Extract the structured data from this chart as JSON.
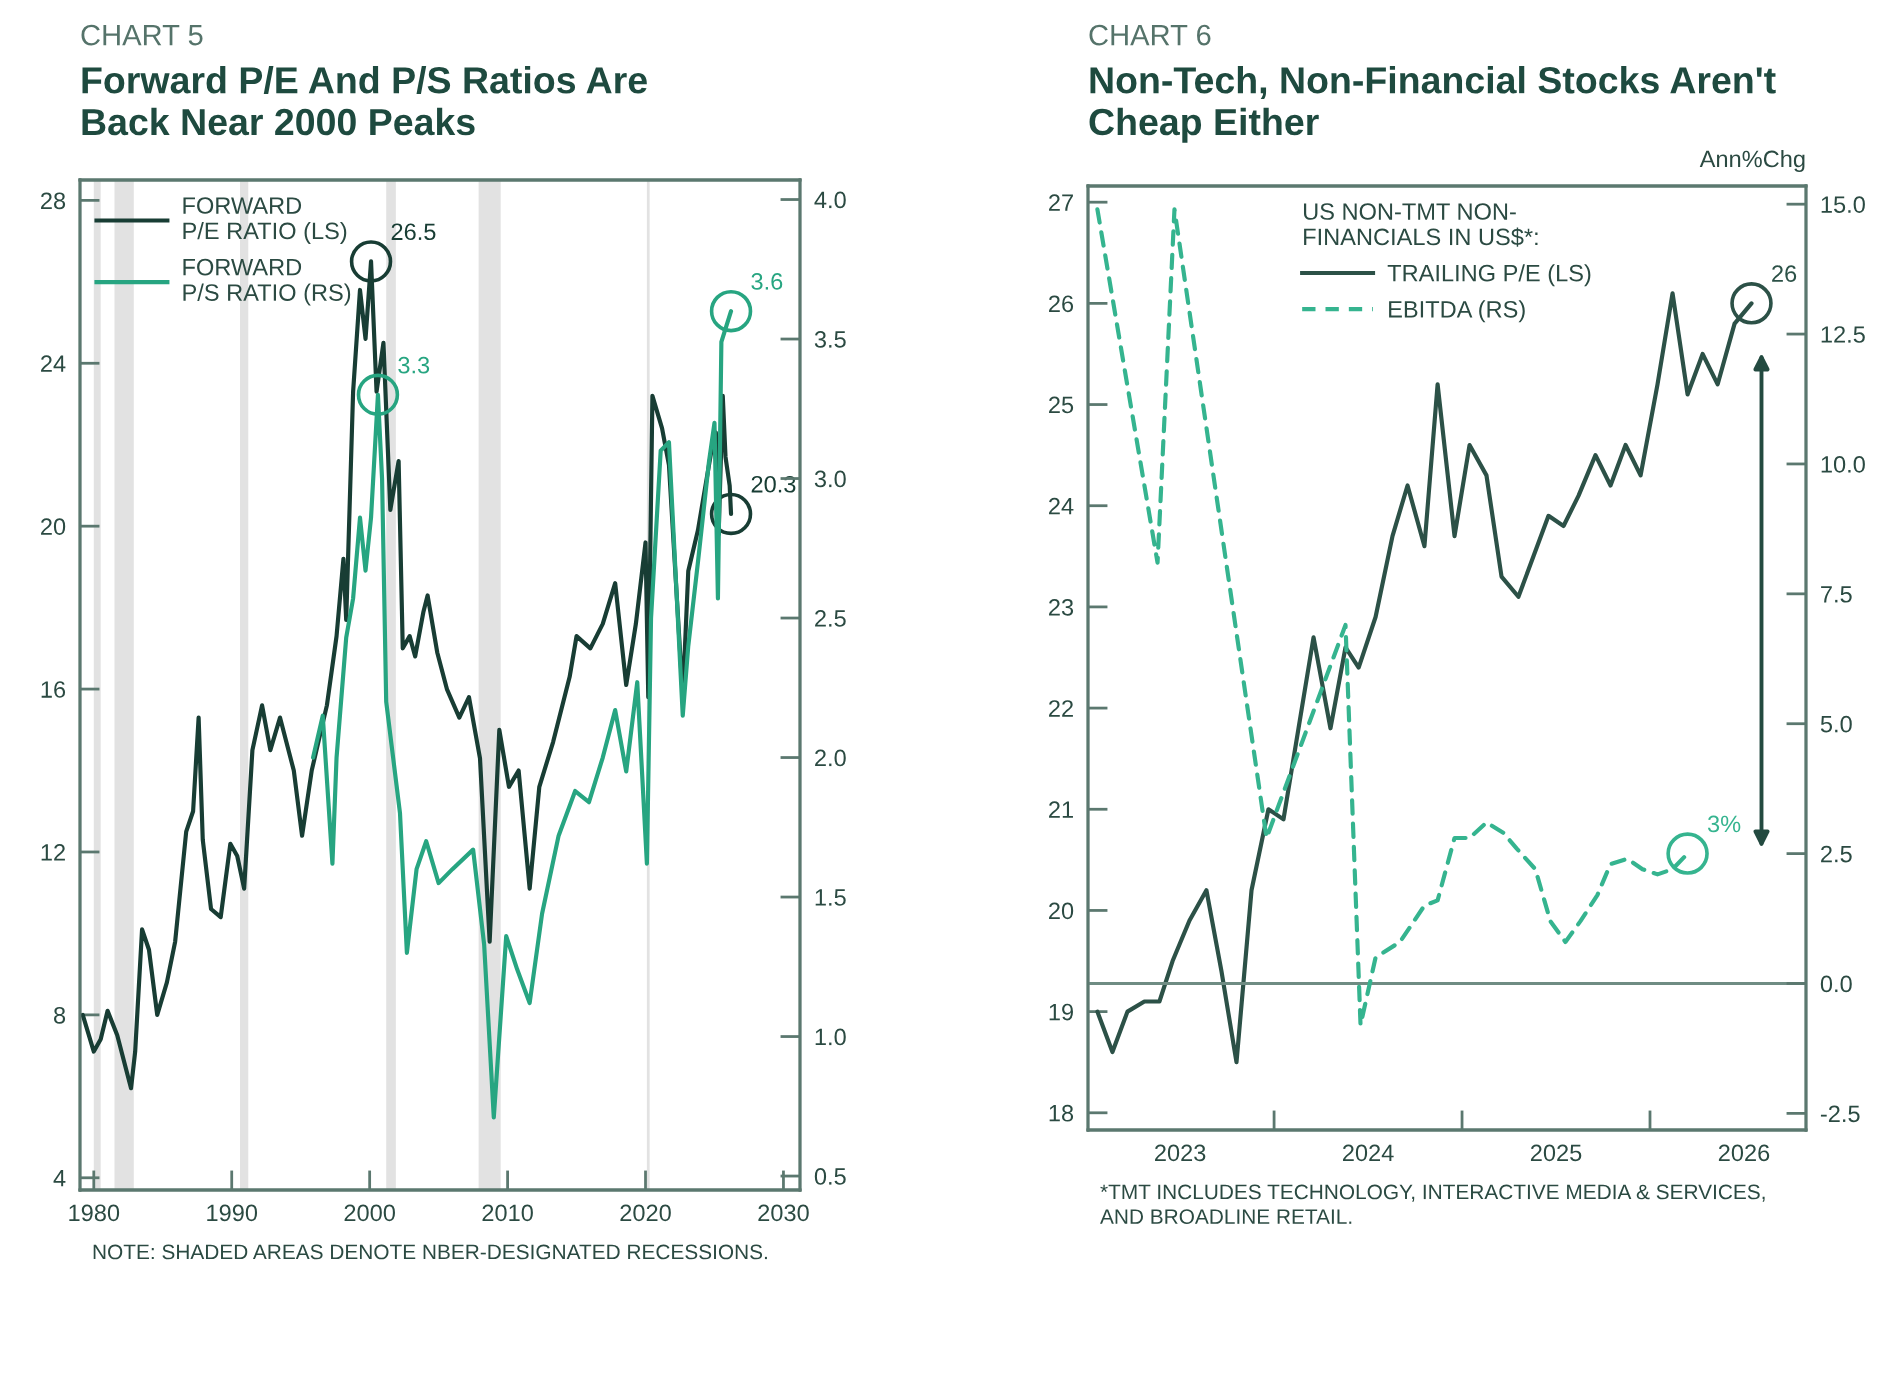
{
  "chart_data": [
    {
      "type": "line",
      "subtitle": "CHART 5",
      "title": "Forward P/E And P/S Ratios Are\nBack Near 2000 Peaks",
      "legend": "top left",
      "xlim": [
        1979,
        2031.2
      ],
      "xticks": [
        1980,
        1990,
        2000,
        2010,
        2020,
        2030
      ],
      "ylim": [
        3.7,
        28.5
      ],
      "yticks": [
        4,
        8,
        12,
        16,
        20,
        24,
        28
      ],
      "y2lim": [
        0.45,
        4.07
      ],
      "y2ticks": [
        0.5,
        {
          "value": 1,
          "label": "1.0"
        },
        1.5,
        {
          "value": 2,
          "label": "2.0"
        },
        2.5,
        {
          "value": 3,
          "label": "3.0"
        },
        3.5,
        {
          "value": 4,
          "label": "4.0"
        }
      ],
      "bands": [
        {
          "axis": "x",
          "from": 1980.0,
          "to": 1980.5,
          "color": "#e2e2e2"
        },
        {
          "axis": "x",
          "from": 1981.5,
          "to": 1982.9,
          "color": "#e2e2e2"
        },
        {
          "axis": "x",
          "from": 1990.6,
          "to": 1991.2,
          "color": "#e2e2e2"
        },
        {
          "axis": "x",
          "from": 2001.2,
          "to": 2001.9,
          "color": "#e2e2e2"
        },
        {
          "axis": "x",
          "from": 2007.9,
          "to": 2009.5,
          "color": "#e2e2e2"
        },
        {
          "axis": "x",
          "from": 2020.1,
          "to": 2020.3,
          "color": "#e2e2e2"
        }
      ],
      "annotations": [
        "NOTE: SHADED AREAS DENOTE NBER-DESIGNATED RECESSIONS."
      ],
      "series": [
        {
          "name": "FORWARD\nP/E RATIO (LS)",
          "color": "#183d34",
          "line_style": "solid",
          "x": [
            1979.2,
            1980.0,
            1980.5,
            1981.0,
            1981.7,
            1982.7,
            1983.0,
            1983.5,
            1984.0,
            1984.6,
            1985.3,
            1985.9,
            1986.7,
            1987.2,
            1987.6,
            1987.9,
            1988.5,
            1989.2,
            1989.9,
            1990.4,
            1990.9,
            1991.5,
            1992.2,
            1992.8,
            1993.5,
            1994.5,
            1995.1,
            1995.8,
            1996.9,
            1997.6,
            1998.1,
            1998.3,
            1998.8,
            1999.3,
            1999.7,
            2000.1,
            2000.5,
            2001.0,
            2001.5,
            2002.1,
            2002.4,
            2002.9,
            2003.3,
            2003.9,
            2004.2,
            2004.9,
            2005.6,
            2006.5,
            2007.2,
            2008.0,
            2008.7,
            2009.4,
            2010.1,
            2010.8,
            2011.6,
            2012.3,
            2013.3,
            2014.5,
            2015.0,
            2016.0,
            2016.9,
            2017.8,
            2018.6,
            2019.3,
            2020.0,
            2020.2,
            2020.5,
            2021.2,
            2021.7,
            2022.7,
            2023.1,
            2023.8,
            2024.8,
            2025.1,
            2025.3,
            2025.6,
            2025.8,
            2026.1,
            2026.2
          ],
          "values": [
            8.0,
            7.1,
            7.4,
            8.1,
            7.5,
            6.2,
            7.1,
            10.1,
            9.6,
            8.0,
            8.8,
            9.8,
            12.5,
            13.0,
            15.3,
            12.3,
            10.6,
            10.4,
            12.2,
            11.9,
            11.1,
            14.5,
            15.6,
            14.5,
            15.3,
            14.0,
            12.4,
            14.0,
            15.6,
            17.3,
            19.2,
            17.7,
            23.3,
            25.8,
            24.6,
            26.5,
            23.3,
            24.5,
            20.4,
            21.6,
            17.0,
            17.3,
            16.8,
            17.9,
            18.3,
            16.9,
            16.0,
            15.3,
            15.8,
            14.3,
            9.8,
            15.0,
            13.6,
            14.0,
            11.1,
            13.6,
            14.7,
            16.3,
            17.3,
            17.0,
            17.6,
            18.6,
            16.1,
            17.6,
            19.6,
            15.8,
            23.2,
            22.4,
            21.5,
            15.8,
            18.9,
            19.9,
            21.9,
            22.3,
            19.8,
            23.2,
            21.7,
            21.0,
            20.3
          ],
          "value_labels": [
            null,
            null,
            null,
            null,
            null,
            null,
            null,
            null,
            null,
            null,
            null,
            null,
            null,
            null,
            null,
            null,
            null,
            null,
            null,
            null,
            null,
            null,
            null,
            null,
            null,
            null,
            null,
            null,
            null,
            null,
            null,
            null,
            null,
            null,
            null,
            "26.5",
            null,
            null,
            null,
            null,
            null,
            null,
            null,
            null,
            null,
            null,
            null,
            null,
            null,
            null,
            null,
            null,
            null,
            null,
            null,
            null,
            null,
            null,
            null,
            null,
            null,
            null,
            null,
            null,
            null,
            null,
            null,
            null,
            null,
            null,
            null,
            null,
            null,
            null,
            null,
            null,
            null,
            null,
            "20.3"
          ]
        },
        {
          "name": "FORWARD\nP/S RATIO (RS)",
          "color": "#27a581",
          "line_style": "solid",
          "axis": "y2",
          "x": [
            1995.9,
            1996.6,
            1997.3,
            1997.6,
            1998.3,
            1998.8,
            1999.3,
            1999.7,
            2000.1,
            2000.6,
            2000.9,
            2001.2,
            2001.7,
            2002.2,
            2002.7,
            2003.4,
            2004.1,
            2005.0,
            2006.0,
            2007.5,
            2008.3,
            2009.0,
            2009.9,
            2010.7,
            2011.6,
            2012.5,
            2013.7,
            2014.9,
            2015.9,
            2016.9,
            2017.8,
            2018.6,
            2019.4,
            2020.1,
            2020.4,
            2021.1,
            2021.7,
            2022.7,
            2023.1,
            2023.8,
            2024.6,
            2025.0,
            2025.25,
            2025.5,
            2026.2
          ],
          "values": [
            2.0,
            2.15,
            1.62,
            2.0,
            2.43,
            2.57,
            2.86,
            2.67,
            2.86,
            3.3,
            3.0,
            2.2,
            2.0,
            1.8,
            1.3,
            1.6,
            1.7,
            1.55,
            1.6,
            1.67,
            1.33,
            0.71,
            1.36,
            1.24,
            1.12,
            1.44,
            1.72,
            1.88,
            1.84,
            2.0,
            2.17,
            1.95,
            2.27,
            1.62,
            2.5,
            3.1,
            3.13,
            2.15,
            2.4,
            2.7,
            3.06,
            3.2,
            2.57,
            3.49,
            3.6
          ],
          "value_labels": [
            null,
            null,
            null,
            null,
            null,
            null,
            null,
            null,
            null,
            "3.3",
            null,
            null,
            null,
            null,
            null,
            null,
            null,
            null,
            null,
            null,
            null,
            null,
            null,
            null,
            null,
            null,
            null,
            null,
            null,
            null,
            null,
            null,
            null,
            null,
            null,
            null,
            null,
            null,
            null,
            null,
            null,
            null,
            null,
            null,
            "3.6"
          ]
        }
      ]
    },
    {
      "type": "line",
      "subtitle": "CHART 6",
      "title": "Non-Tech, Non-Financial Stocks Aren't\nCheap Either",
      "y2label": "Ann%Chg",
      "legend": "top",
      "legend_title": "US NON-TMT NON-\nFINANCIALS IN US$*:",
      "xlim": [
        2022.51,
        2026.33
      ],
      "xticks": [
        2023,
        {
          "value": 2023.5,
          "label": null
        },
        2024,
        {
          "value": 2024.5,
          "label": null
        },
        2025,
        {
          "value": 2025.5,
          "label": null
        },
        2026
      ],
      "ylim": [
        17.83,
        27.16
      ],
      "yticks": [
        18,
        19,
        20,
        21,
        22,
        23,
        24,
        25,
        26,
        27
      ],
      "y2lim": [
        -2.82,
        15.35
      ],
      "y2ticks": [
        -2.5,
        {
          "value": 0,
          "label": "0.0"
        },
        2.5,
        {
          "value": 5,
          "label": "5.0"
        },
        7.5,
        {
          "value": 10,
          "label": "10.0"
        },
        12.5,
        {
          "value": 15,
          "label": "15.0"
        }
      ],
      "ref_lines": [
        {
          "axis": "y2",
          "value": 0,
          "color": "#6f8c83"
        }
      ],
      "annotations": [
        "*TMT INCLUDES TECHNOLOGY, INTERACTIVE MEDIA & SERVICES,\nAND BROADLINE RETAIL."
      ],
      "series": [
        {
          "name": "TRAILING P/E (LS)",
          "color": "#2c5147",
          "line_style": "solid",
          "x": [
            2022.56,
            2022.64,
            2022.72,
            2022.81,
            2022.89,
            2022.96,
            2023.05,
            2023.14,
            2023.22,
            2023.3,
            2023.38,
            2023.47,
            2023.55,
            2023.63,
            2023.71,
            2023.8,
            2023.88,
            2023.95,
            2024.04,
            2024.13,
            2024.21,
            2024.3,
            2024.37,
            2024.46,
            2024.54,
            2024.63,
            2024.71,
            2024.8,
            2024.88,
            2024.96,
            2025.04,
            2025.12,
            2025.21,
            2025.29,
            2025.37,
            2025.45,
            2025.54,
            2025.62,
            2025.7,
            2025.78,
            2025.86,
            2025.95,
            2026.04
          ],
          "values": [
            19.0,
            18.6,
            19.0,
            19.1,
            19.1,
            19.5,
            19.9,
            20.2,
            19.4,
            18.5,
            20.2,
            21.0,
            20.9,
            21.8,
            22.7,
            21.8,
            22.6,
            22.4,
            22.9,
            23.7,
            24.2,
            23.6,
            25.2,
            23.7,
            24.6,
            24.3,
            23.3,
            23.1,
            23.5,
            23.9,
            23.8,
            24.1,
            24.5,
            24.2,
            24.6,
            24.3,
            25.2,
            26.1,
            25.1,
            25.5,
            25.2,
            25.8,
            26.0
          ],
          "value_labels": [
            null,
            null,
            null,
            null,
            null,
            null,
            null,
            null,
            null,
            null,
            null,
            null,
            null,
            null,
            null,
            null,
            null,
            null,
            null,
            null,
            null,
            null,
            null,
            null,
            null,
            null,
            null,
            null,
            null,
            null,
            null,
            null,
            null,
            null,
            null,
            null,
            null,
            null,
            null,
            null,
            null,
            null,
            "26"
          ]
        },
        {
          "name": "EBITDA (RS)",
          "color": "#35b48f",
          "line_style": "dashed",
          "axis": "y2",
          "x": [
            2022.56,
            2022.88,
            2022.97,
            2023.46,
            2023.88,
            2023.96,
            2024.04,
            2024.17,
            2024.3,
            2024.37,
            2024.46,
            2024.54,
            2024.63,
            2024.72,
            2024.79,
            2024.89,
            2024.97,
            2025.05,
            2025.13,
            2025.22,
            2025.29,
            2025.38,
            2025.46,
            2025.54,
            2025.62,
            2025.7
          ],
          "values": [
            14.9,
            8.1,
            14.9,
            2.8,
            6.9,
            -0.8,
            0.5,
            0.8,
            1.5,
            1.6,
            2.8,
            2.8,
            3.1,
            2.9,
            2.6,
            2.2,
            1.2,
            0.8,
            1.2,
            1.7,
            2.3,
            2.4,
            2.2,
            2.1,
            2.2,
            2.5
          ],
          "value_labels": [
            null,
            null,
            null,
            null,
            null,
            null,
            null,
            null,
            null,
            null,
            null,
            null,
            null,
            null,
            null,
            null,
            null,
            null,
            null,
            null,
            null,
            null,
            null,
            null,
            null,
            "3%"
          ]
        }
      ]
    }
  ]
}
